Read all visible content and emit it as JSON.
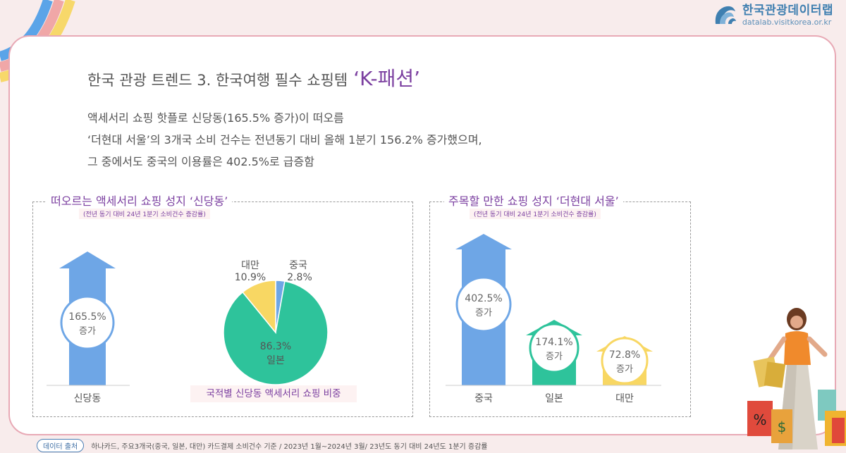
{
  "brand": {
    "name": "한국관광데이터랩",
    "url": "datalab.visitkorea.or.kr"
  },
  "title": {
    "prefix": "한국 관광 트렌드 3. 한국여행 필수 쇼핑템 ",
    "accent": "‘K-패션’"
  },
  "summary": [
    "액세서리 쇼핑 핫플로 신당동(165.5% 증가)이 떠오름",
    "‘더현대 서울’의 3개국 소비 건수는 전년동기 대비 올해 1분기 156.2%  증가했으며,",
    "그 중에서도 중국의 이용률은 402.5%로  급증함"
  ],
  "left_panel": {
    "title": "떠오르는 액세서리 쇼핑 성지 ‘신당동’",
    "subtitle": "(전년 동기 대비 24년 1분기 소비건수 증감률)",
    "pie_caption": "국적별 신당동 액세서리 쇼핑 비중"
  },
  "right_panel": {
    "title": "주목할 만한 쇼핑 성지 ‘더현대 서울’",
    "subtitle": "(전년 동기 대비 24년 1분기 소비건수 증감률)"
  },
  "footer": {
    "badge": "데이터 출처",
    "text": "하나카드, 주요3개국(중국, 일본, 대만) 카드결제 소비건수 기준 / 2023년 1월~2024년 3월/ 23년도 동기 대비 24년도 1분기 증감률"
  },
  "colors": {
    "blue": "#6ea6e6",
    "green": "#2ec39b",
    "yellow": "#f8d763",
    "purple": "#7b3fa0",
    "border_pink": "#e8a9b5"
  },
  "chart_data": [
    {
      "type": "bar",
      "shape": "arrow",
      "categories": [
        "신당동"
      ],
      "values": [
        165.5
      ],
      "value_labels": [
        "165.5%"
      ],
      "sub_labels": [
        "증가"
      ],
      "colors": [
        "#6ea6e6"
      ]
    },
    {
      "type": "pie",
      "categories": [
        "일본",
        "대만",
        "중국"
      ],
      "values": [
        86.3,
        10.9,
        2.8
      ],
      "value_labels": [
        "86.3%",
        "10.9%",
        "2.8%"
      ],
      "colors": [
        "#2ec39b",
        "#f8d763",
        "#6ea6e6"
      ],
      "title": "국적별 신당동 액세서리 쇼핑 비중"
    },
    {
      "type": "bar",
      "shape": "arrow",
      "categories": [
        "중국",
        "일본",
        "대만"
      ],
      "values": [
        402.5,
        174.1,
        72.8
      ],
      "value_labels": [
        "402.5%",
        "174.1%",
        "72.8%"
      ],
      "sub_labels": [
        "증가",
        "증가",
        "증가"
      ],
      "colors": [
        "#6ea6e6",
        "#2ec39b",
        "#f8d763"
      ]
    }
  ]
}
